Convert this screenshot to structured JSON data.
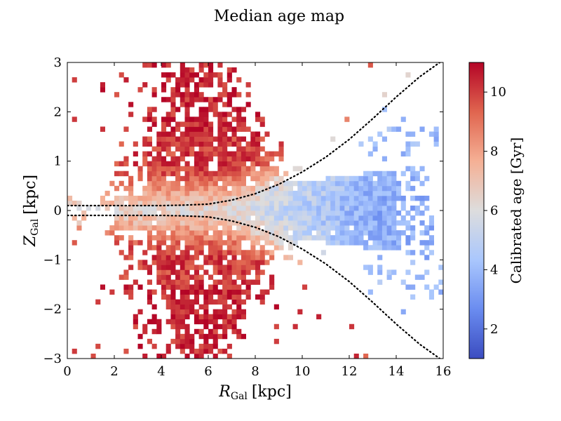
{
  "chart_data": {
    "type": "heatmap",
    "title": "Median age map",
    "xlabel": {
      "main": "R",
      "sub": "Gal",
      "unit": "[kpc]"
    },
    "ylabel": {
      "main": "Z",
      "sub": "Gal",
      "unit": "[kpc]"
    },
    "xlim": [
      0,
      16
    ],
    "ylim": [
      -3,
      3
    ],
    "xticks": [
      0,
      2,
      4,
      6,
      8,
      10,
      12,
      14,
      16
    ],
    "yticks": [
      -3,
      -2,
      -1,
      0,
      1,
      2,
      3
    ],
    "xtick_labels": [
      "0",
      "2",
      "4",
      "6",
      "8",
      "10",
      "12",
      "14",
      "16"
    ],
    "ytick_labels": [
      "−3",
      "−2",
      "−1",
      "0",
      "1",
      "2",
      "3"
    ],
    "grid": false,
    "colorbar": {
      "label": "Calibrated age [Gyr]",
      "range": [
        1,
        11
      ],
      "ticks": [
        2,
        4,
        6,
        8,
        10
      ],
      "tick_labels": [
        "2",
        "4",
        "6",
        "8",
        "10"
      ],
      "colormap": "coolwarm",
      "color_stops": [
        "#3b4cc0",
        "#6a8cf0",
        "#aac7fd",
        "#dddddd",
        "#f5b095",
        "#e0654f",
        "#b40426"
      ]
    },
    "bins": {
      "x_bin_width": 0.2,
      "y_bin_width": 0.1
    },
    "age_trend": {
      "thin_disk_inner_age": 6.0,
      "thin_disk_outer_age": 3.5,
      "high_latitude_age": 10.0
    },
    "overlay_curves": [
      {
        "name": "upper-boundary",
        "style": "dotted",
        "color": "#000000",
        "x": [
          0,
          2,
          4,
          5,
          6,
          7,
          8,
          9,
          10,
          11,
          12,
          13,
          14,
          15,
          16
        ],
        "y": [
          0.1,
          0.1,
          0.1,
          0.11,
          0.13,
          0.21,
          0.34,
          0.53,
          0.78,
          1.08,
          1.44,
          1.86,
          2.3,
          2.71,
          3.05
        ]
      },
      {
        "name": "lower-boundary",
        "style": "dotted",
        "color": "#000000",
        "x": [
          0,
          2,
          4,
          5,
          6,
          7,
          8,
          9,
          10,
          11,
          12,
          13,
          14,
          15,
          16
        ],
        "y": [
          -0.1,
          -0.1,
          -0.1,
          -0.11,
          -0.13,
          -0.21,
          -0.34,
          -0.53,
          -0.78,
          -1.08,
          -1.44,
          -1.86,
          -2.3,
          -2.71,
          -3.05
        ]
      }
    ]
  }
}
